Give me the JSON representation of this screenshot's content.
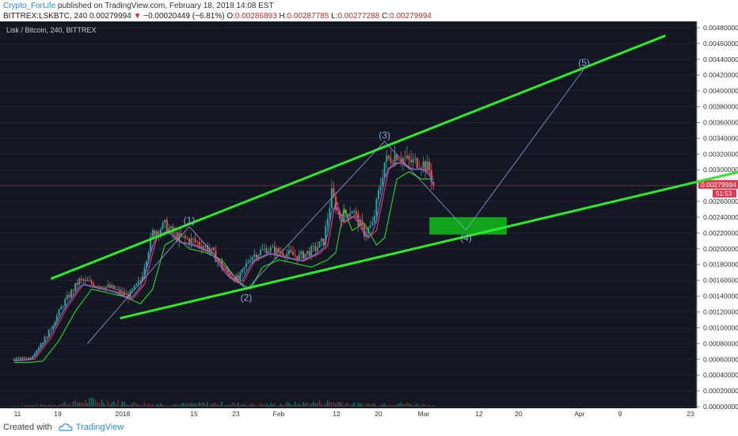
{
  "header": {
    "author": "Crypto_ForLife",
    "published": "published on TradingView.com, February 18, 2018 14:08 EST",
    "symbol": "BITTREX:LSKBTC, 240",
    "last": "0.00279994",
    "change_arrow": "▼",
    "change": "−0.00020449 (−6.81%)",
    "o_label": "O:",
    "o": "0.00286893",
    "h_label": "H:",
    "h": "0.00287785",
    "l_label": "L:",
    "l": "0.00277288",
    "c_label": "C:",
    "c": "0.00279994"
  },
  "footer": {
    "created_with": "Created with",
    "brand": "TradingView"
  },
  "colors": {
    "bg": "#131722",
    "green_line": "#2ee82e",
    "zone": "#11a31b",
    "up": "#26a69a",
    "down": "#ef5350",
    "price_line": "#e0394f",
    "wave": "#8aa4d6"
  },
  "chart_data": {
    "type": "candlestick",
    "title": "Lisk / Bitcoin, 240, BITTREX",
    "x_ticks": [
      "11",
      "19",
      "2018",
      "15",
      "23",
      "Feb",
      "12",
      "20",
      "Mar",
      "12",
      "20",
      "Apr",
      "9",
      "23"
    ],
    "y_ticks": [
      "0.00480000",
      "0.00460000",
      "0.00440000",
      "0.00420000",
      "0.00400000",
      "0.00380000",
      "0.00360000",
      "0.00340000",
      "0.00320000",
      "0.00300000",
      "0.00280000",
      "0.00260000",
      "0.00240000",
      "0.00220000",
      "0.00200000",
      "0.00180000",
      "0.00160000",
      "0.00140000",
      "0.00120000",
      "0.00100000",
      "0.00080000",
      "0.00060000",
      "0.00040000",
      "0.00020000",
      "0.00000000"
    ],
    "ylim": [
      -2e-05,
      0.00488
    ],
    "current_price_label": "0.00279994",
    "countdown_label": "51:53",
    "price_path": [
      [
        0,
        0.0006
      ],
      [
        4,
        0.00062
      ],
      [
        8,
        0.0009
      ],
      [
        12,
        0.0013
      ],
      [
        16,
        0.0016
      ],
      [
        20,
        0.00155
      ],
      [
        24,
        0.0015
      ],
      [
        28,
        0.0014
      ],
      [
        31,
        0.0016
      ],
      [
        34,
        0.0022
      ],
      [
        37,
        0.0023
      ],
      [
        40,
        0.00215
      ],
      [
        44,
        0.0021
      ],
      [
        48,
        0.002
      ],
      [
        52,
        0.0017
      ],
      [
        55,
        0.0016
      ],
      [
        58,
        0.0019
      ],
      [
        62,
        0.002
      ],
      [
        66,
        0.00195
      ],
      [
        70,
        0.0019
      ],
      [
        74,
        0.002
      ],
      [
        76,
        0.0021
      ],
      [
        78,
        0.0027
      ],
      [
        80,
        0.0024
      ],
      [
        83,
        0.0025
      ],
      [
        86,
        0.0022
      ],
      [
        88,
        0.0023
      ],
      [
        91,
        0.0031
      ],
      [
        94,
        0.0032
      ],
      [
        97,
        0.0031
      ],
      [
        100,
        0.0031
      ],
      [
        102,
        0.003
      ],
      [
        103,
        0.0028
      ]
    ],
    "volume_path": [
      [
        0,
        1e-05
      ],
      [
        10,
        3e-05
      ],
      [
        20,
        8e-05
      ],
      [
        30,
        4e-05
      ],
      [
        40,
        3e-05
      ],
      [
        50,
        4e-05
      ],
      [
        60,
        3e-05
      ],
      [
        70,
        4e-05
      ],
      [
        78,
        6e-05
      ],
      [
        85,
        3e-05
      ],
      [
        95,
        4e-05
      ],
      [
        103,
        2e-05
      ]
    ],
    "resistance_line": [
      [
        9,
        0.00162
      ],
      [
        160,
        0.0047
      ]
    ],
    "support_line": [
      [
        26,
        0.00112
      ],
      [
        195,
        0.00318
      ]
    ],
    "target_zone": {
      "x": [
        102,
        121
      ],
      "y": [
        0.00218,
        0.0024
      ]
    },
    "waves": [
      {
        "label": "(1)",
        "x": 43,
        "y": 0.00228
      },
      {
        "label": "(2)",
        "x": 57,
        "y": 0.00148
      },
      {
        "label": "(3)",
        "x": 91,
        "y": 0.00336
      },
      {
        "label": "(4)",
        "x": 111,
        "y": 0.00224
      },
      {
        "label": "(5)",
        "x": 140,
        "y": 0.00428
      }
    ]
  }
}
